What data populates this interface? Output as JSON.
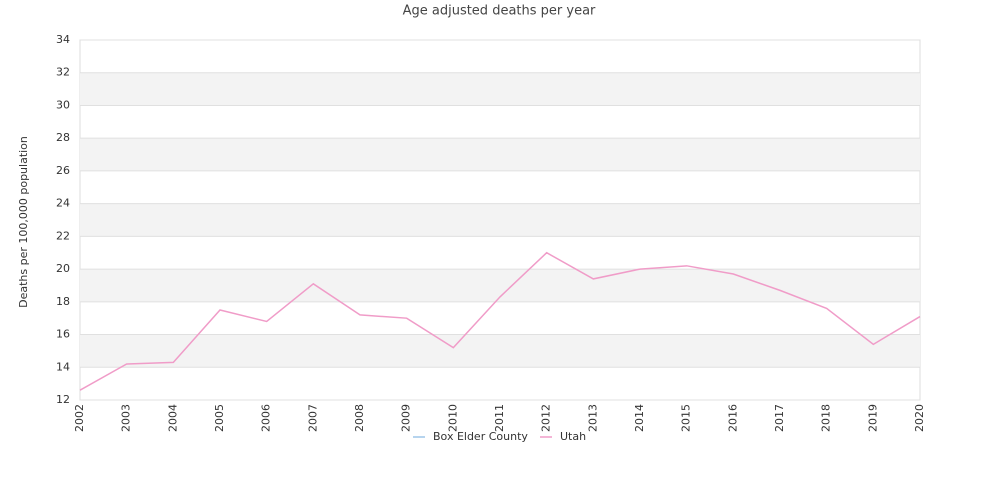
{
  "chart_data": {
    "type": "line",
    "title": "Age adjusted deaths per year",
    "y_label": "Deaths per 100,000 population",
    "categories": [
      "2002",
      "2003",
      "2004",
      "2005",
      "2006",
      "2007",
      "2008",
      "2009",
      "2010",
      "2011",
      "2012",
      "2013",
      "2014",
      "2015",
      "2016",
      "2017",
      "2018",
      "2019",
      "2020"
    ],
    "series": [
      {
        "name": "Box Elder County",
        "color": "#9ec5e8",
        "values": [
          null,
          null,
          null,
          null,
          null,
          null,
          null,
          null,
          null,
          null,
          null,
          null,
          null,
          null,
          null,
          null,
          null,
          null,
          null
        ]
      },
      {
        "name": "Utah",
        "color": "#f09cc8",
        "values": [
          12.6,
          14.2,
          14.3,
          17.5,
          16.8,
          19.1,
          17.2,
          17.0,
          15.2,
          18.3,
          21.0,
          19.4,
          20.0,
          20.2,
          19.7,
          18.7,
          17.6,
          15.4,
          17.1
        ]
      }
    ],
    "ylim": [
      12,
      34
    ],
    "yticks": [
      12,
      14,
      16,
      18,
      20,
      22,
      24,
      26,
      28,
      30,
      32,
      34
    ],
    "grid": true
  }
}
